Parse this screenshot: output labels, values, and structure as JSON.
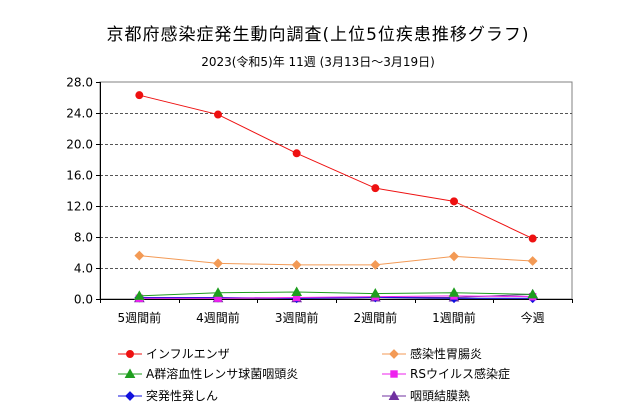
{
  "chart_data": {
    "type": "line",
    "title": "京都府感染症発生動向調査(上位5位疾患推移グラフ)",
    "subtitle": "2023(令和5)年 11週 (3月13日～3月19日)",
    "categories": [
      "5週間前",
      "4週間前",
      "3週間前",
      "2週間前",
      "1週間前",
      "今週"
    ],
    "ylim": [
      0,
      28
    ],
    "yticks": [
      "0.0",
      "4.0",
      "8.0",
      "12.0",
      "16.0",
      "20.0",
      "24.0",
      "28.0"
    ],
    "grid": true,
    "legend_position": "bottom",
    "series": [
      {
        "name": "インフルエンザ",
        "color": "#ee1111",
        "marker": "circle",
        "values": [
          26.3,
          23.8,
          18.8,
          14.3,
          12.6,
          7.8
        ]
      },
      {
        "name": "感染性胃腸炎",
        "color": "#f39a55",
        "marker": "diamond",
        "values": [
          5.6,
          4.6,
          4.4,
          4.4,
          5.5,
          4.9
        ]
      },
      {
        "name": "A群溶血性レンサ球菌咽頭炎",
        "color": "#1e9e1e",
        "marker": "triangle",
        "values": [
          0.4,
          0.8,
          0.9,
          0.7,
          0.8,
          0.6
        ]
      },
      {
        "name": "RSウイルス感染症",
        "color": "#ee22ee",
        "marker": "square",
        "values": [
          0.1,
          0.1,
          0.2,
          0.3,
          0.4,
          0.3
        ]
      },
      {
        "name": "突発性発しん",
        "color": "#1111dd",
        "marker": "diamond",
        "values": [
          0.2,
          0.2,
          0.1,
          0.2,
          0.1,
          0.1
        ]
      },
      {
        "name": "咽頭結膜熱",
        "color": "#7030a0",
        "marker": "triangle",
        "values": [
          0.1,
          0.1,
          0.1,
          0.2,
          0.2,
          0.6
        ]
      }
    ]
  }
}
